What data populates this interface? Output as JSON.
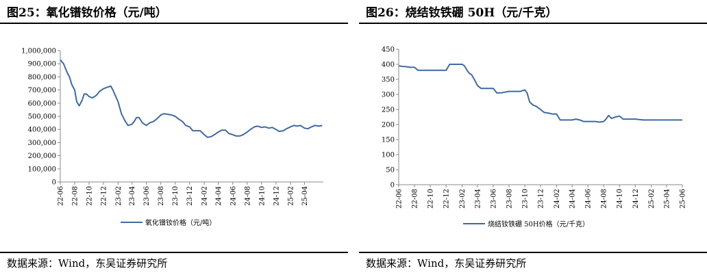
{
  "charts": [
    {
      "title": "图25：氧化镨钕价格（元/吨）",
      "source": "数据来源：Wind，东吴证券研究所",
      "legend": "氧化镨钕价格（元/吨）",
      "color": "#3d6aa1",
      "ylim": [
        0,
        1000000
      ],
      "yticks": [
        "0",
        "100,000",
        "200,000",
        "300,000",
        "400,000",
        "500,000",
        "600,000",
        "700,000",
        "800,000",
        "900,000",
        "1,000,000"
      ],
      "xticks": [
        "22-06",
        "22-08",
        "22-10",
        "22-12",
        "23-02",
        "23-04",
        "23-06",
        "23-08",
        "23-10",
        "23-12",
        "24-02",
        "24-04",
        "24-06",
        "24-08",
        "24-10",
        "24-12",
        "25-02",
        "25-04"
      ]
    },
    {
      "title": "图26：烧结钕铁硼 50H（元/千克）",
      "source": "数据来源：Wind，东吴证券研究所",
      "legend": "烧结钕铁硼 50H价格（元/千克）",
      "color": "#3d6aa1",
      "ylim": [
        0,
        450
      ],
      "yticks": [
        "0",
        "50",
        "100",
        "150",
        "200",
        "250",
        "300",
        "350",
        "400",
        "450"
      ],
      "xticks": [
        "22-06",
        "22-08",
        "22-10",
        "22-12",
        "23-02",
        "23-04",
        "23-06",
        "23-08",
        "23-10",
        "23-12",
        "24-02",
        "24-04",
        "24-06",
        "24-08",
        "24-10",
        "24-12",
        "25-02",
        "25-04",
        "25-06"
      ]
    }
  ],
  "chart_data": [
    {
      "type": "line",
      "title": "氧化镨钕价格（元/吨）",
      "ylim": [
        0,
        1000000
      ],
      "series": [
        {
          "name": "氧化镨钕价格（元/吨）",
          "x": [
            "2022-06-01",
            "2022-06-15",
            "2022-07-01",
            "2022-07-10",
            "2022-07-20",
            "2022-08-01",
            "2022-08-10",
            "2022-08-20",
            "2022-09-01",
            "2022-09-10",
            "2022-09-20",
            "2022-10-01",
            "2022-10-15",
            "2022-11-01",
            "2022-11-15",
            "2022-12-01",
            "2022-12-15",
            "2023-01-01",
            "2023-01-10",
            "2023-01-20",
            "2023-02-01",
            "2023-02-15",
            "2023-03-01",
            "2023-03-15",
            "2023-04-01",
            "2023-04-10",
            "2023-04-20",
            "2023-05-01",
            "2023-05-15",
            "2023-06-01",
            "2023-06-15",
            "2023-07-01",
            "2023-07-15",
            "2023-08-01",
            "2023-08-15",
            "2023-09-01",
            "2023-09-15",
            "2023-10-01",
            "2023-10-15",
            "2023-11-01",
            "2023-11-15",
            "2023-12-01",
            "2023-12-15",
            "2024-01-01",
            "2024-01-15",
            "2024-02-01",
            "2024-02-15",
            "2024-03-01",
            "2024-03-15",
            "2024-04-01",
            "2024-04-15",
            "2024-05-01",
            "2024-05-15",
            "2024-06-01",
            "2024-06-15",
            "2024-07-01",
            "2024-07-15",
            "2024-08-01",
            "2024-08-15",
            "2024-09-01",
            "2024-09-15",
            "2024-10-01",
            "2024-10-15",
            "2024-11-01",
            "2024-11-15",
            "2024-12-01",
            "2024-12-15",
            "2025-01-01",
            "2025-01-15",
            "2025-02-01",
            "2025-02-15",
            "2025-03-01",
            "2025-03-15",
            "2025-04-01",
            "2025-04-15",
            "2025-05-01",
            "2025-05-15",
            "2025-06-01",
            "2025-06-15"
          ],
          "values": [
            930000,
            900000,
            830000,
            800000,
            740000,
            700000,
            610000,
            580000,
            620000,
            670000,
            670000,
            650000,
            640000,
            660000,
            690000,
            710000,
            720000,
            730000,
            700000,
            660000,
            610000,
            520000,
            470000,
            430000,
            440000,
            460000,
            490000,
            490000,
            450000,
            430000,
            450000,
            460000,
            480000,
            510000,
            520000,
            515000,
            510000,
            500000,
            480000,
            460000,
            430000,
            420000,
            390000,
            390000,
            390000,
            360000,
            340000,
            345000,
            360000,
            380000,
            395000,
            395000,
            370000,
            360000,
            350000,
            350000,
            360000,
            380000,
            400000,
            420000,
            425000,
            415000,
            420000,
            410000,
            415000,
            400000,
            385000,
            390000,
            405000,
            420000,
            430000,
            425000,
            430000,
            410000,
            405000,
            420000,
            430000,
            425000,
            430000
          ]
        }
      ]
    },
    {
      "type": "line",
      "title": "烧结钕铁硼 50H（元/千克）",
      "ylim": [
        0,
        450
      ],
      "series": [
        {
          "name": "烧结钕铁硼 50H价格（元/千克）",
          "x": [
            "2022-06-01",
            "2022-06-15",
            "2022-07-01",
            "2022-07-15",
            "2022-08-01",
            "2022-08-15",
            "2022-09-01",
            "2022-10-01",
            "2022-11-01",
            "2022-12-01",
            "2022-12-15",
            "2023-01-01",
            "2023-01-15",
            "2023-02-01",
            "2023-02-10",
            "2023-02-20",
            "2023-03-01",
            "2023-03-10",
            "2023-03-20",
            "2023-04-01",
            "2023-04-15",
            "2023-05-01",
            "2023-05-15",
            "2023-06-01",
            "2023-06-15",
            "2023-07-01",
            "2023-08-01",
            "2023-09-01",
            "2023-09-15",
            "2023-10-01",
            "2023-10-10",
            "2023-10-20",
            "2023-11-01",
            "2023-11-15",
            "2023-12-01",
            "2023-12-15",
            "2024-01-01",
            "2024-01-15",
            "2024-02-01",
            "2024-02-15",
            "2024-03-01",
            "2024-04-01",
            "2024-04-15",
            "2024-05-01",
            "2024-05-15",
            "2024-06-01",
            "2024-07-01",
            "2024-07-15",
            "2024-08-01",
            "2024-08-10",
            "2024-08-20",
            "2024-09-01",
            "2024-09-15",
            "2024-10-01",
            "2024-10-15",
            "2024-11-01",
            "2024-12-01",
            "2025-01-01",
            "2025-02-01",
            "2025-03-01",
            "2025-04-01",
            "2025-05-01",
            "2025-06-01"
          ],
          "values": [
            395,
            393,
            392,
            390,
            390,
            380,
            380,
            380,
            380,
            380,
            400,
            400,
            400,
            400,
            395,
            380,
            370,
            365,
            350,
            330,
            320,
            320,
            320,
            320,
            305,
            305,
            310,
            310,
            310,
            315,
            305,
            275,
            265,
            260,
            250,
            240,
            238,
            235,
            235,
            215,
            215,
            215,
            218,
            215,
            210,
            210,
            210,
            208,
            210,
            218,
            230,
            220,
            225,
            228,
            218,
            218,
            218,
            215,
            215,
            215,
            215,
            215,
            215
          ]
        }
      ]
    }
  ]
}
